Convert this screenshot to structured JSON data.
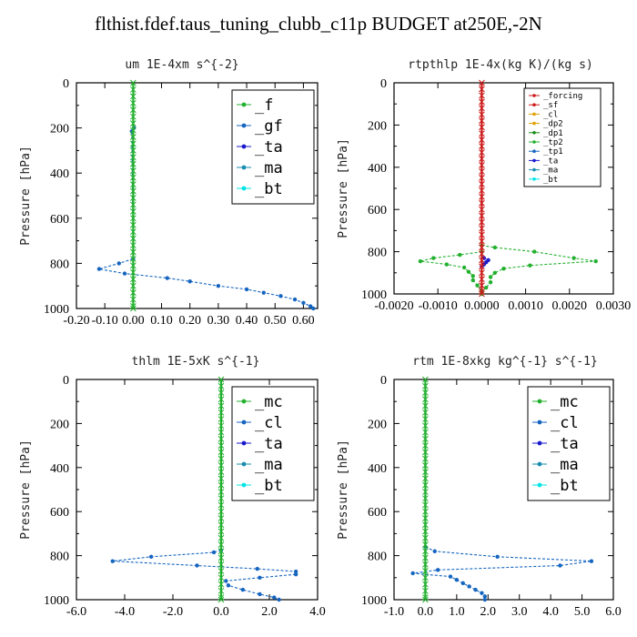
{
  "title": "flthist.fdef.taus_tuning_clubb_c11p  BUDGET at250E,-2N",
  "colors": {
    "green": "#22b02e",
    "blue": "#1565c0",
    "red": "#cc1a1a",
    "cyan": "#00e5e5"
  },
  "chart_data": [
    {
      "type": "line",
      "title": "um  1E-4xm s^{-2}",
      "ylabel": "Pressure [hPa]",
      "xlim": [
        -0.2,
        0.65
      ],
      "ylim": [
        1000,
        0
      ],
      "xticks": [
        -0.2,
        -0.1,
        0.0,
        0.1,
        0.2,
        0.3,
        0.4,
        0.5,
        0.6
      ],
      "xticklabels": [
        "-0.20",
        "-0.10",
        "0.00",
        "0.10",
        "0.20",
        "0.30",
        "0.40",
        "0.50",
        "0.60"
      ],
      "yticks": [
        0,
        200,
        400,
        600,
        800,
        1000
      ],
      "legend_position": "top-right",
      "legend_font": "large",
      "legend": [
        {
          "label": "_f",
          "color": "#22b02e"
        },
        {
          "label": "_gf",
          "color": "#1565c0"
        },
        {
          "label": "_ta",
          "color": "#1a1acc"
        },
        {
          "label": "_ma",
          "color": "#1a8cb0"
        },
        {
          "label": "_bt",
          "color": "#00e5e5"
        }
      ],
      "series": [
        {
          "name": "_gf",
          "color": "#1565c0",
          "y": [
            200,
            215,
            780,
            800,
            825,
            845,
            865,
            880,
            900,
            915,
            930,
            945,
            960,
            975,
            990,
            1000
          ],
          "values": [
            0.003,
            -0.005,
            0.0,
            -0.05,
            -0.12,
            -0.03,
            0.12,
            0.2,
            0.3,
            0.4,
            0.46,
            0.52,
            0.57,
            0.6,
            0.625,
            0.635
          ]
        },
        {
          "name": "_f",
          "color": "#22b02e",
          "y": [
            0,
            30,
            60,
            90,
            120,
            150,
            180,
            210,
            240,
            270,
            300,
            330,
            360,
            390,
            420,
            450,
            480,
            510,
            540,
            570,
            600,
            630,
            660,
            690,
            720,
            750,
            780,
            810,
            840,
            870,
            900,
            930,
            960,
            990,
            1000
          ],
          "values": [
            0,
            0,
            0,
            0,
            0,
            0,
            0,
            0,
            0,
            0,
            0,
            0,
            0,
            0,
            0,
            0,
            0,
            0,
            0,
            0,
            0,
            0,
            0,
            0,
            0,
            0,
            0,
            0,
            0,
            0,
            0,
            0,
            0,
            0,
            0
          ]
        }
      ]
    },
    {
      "type": "line",
      "title": "rtpthlp  1E-4x(kg K)/(kg s)",
      "ylabel": "Pressure [hPa]",
      "xlim": [
        -0.002,
        0.003
      ],
      "ylim": [
        1000,
        0
      ],
      "xticks": [
        -0.002,
        -0.001,
        0.0,
        0.001,
        0.002,
        0.003
      ],
      "xticklabels": [
        "-0.0020",
        "-0.0010",
        "0.0000",
        "0.0010",
        "0.0020",
        "0.0030"
      ],
      "yticks": [
        0,
        200,
        400,
        600,
        800,
        1000
      ],
      "legend_position": "top-right",
      "legend_font": "small",
      "legend": [
        {
          "label": "_forcing",
          "color": "#cc1a1a"
        },
        {
          "label": "_sf",
          "color": "#cc1a1a"
        },
        {
          "label": "_cl",
          "color": "#e0a000"
        },
        {
          "label": "_dp2",
          "color": "#e0a000"
        },
        {
          "label": "_dp1",
          "color": "#1a8c1a"
        },
        {
          "label": "_tp2",
          "color": "#22b02e"
        },
        {
          "label": "_tp1",
          "color": "#1565c0"
        },
        {
          "label": "_ta",
          "color": "#1a1acc"
        },
        {
          "label": "_ma",
          "color": "#1a8cb0"
        },
        {
          "label": "_bt",
          "color": "#00e5e5"
        }
      ],
      "series": [
        {
          "name": "_tp2",
          "color": "#22b02e",
          "y": [
            770,
            780,
            800,
            830,
            845,
            865,
            880,
            900,
            920,
            945,
            970,
            990,
            1000
          ],
          "values": [
            0.0,
            0.0003,
            0.0012,
            0.0021,
            0.0026,
            0.0011,
            0.0005,
            0.0003,
            0.0002,
            0.0002,
            0.0001,
            0.0,
            0.0
          ]
        },
        {
          "name": "_dp1",
          "color": "#22b02e",
          "y": [
            800,
            815,
            830,
            845,
            860,
            875,
            895,
            915,
            935,
            960,
            985,
            1000
          ],
          "values": [
            0.0,
            -0.0005,
            -0.0011,
            -0.0014,
            -0.0008,
            -0.0004,
            -0.0003,
            -0.0002,
            -0.0002,
            -0.0001,
            0.0,
            0.0
          ]
        },
        {
          "name": "_ta",
          "color": "#1a1acc",
          "y": [
            830,
            840,
            850,
            860,
            870
          ],
          "values": [
            5e-05,
            0.00015,
            0.0001,
            5e-05,
            0.0
          ]
        },
        {
          "name": "_forcing",
          "color": "#cc1a1a",
          "y": [
            0,
            30,
            60,
            90,
            120,
            150,
            180,
            210,
            240,
            270,
            300,
            330,
            360,
            390,
            420,
            450,
            480,
            510,
            540,
            570,
            600,
            630,
            660,
            690,
            720,
            750,
            780,
            810,
            840,
            870,
            900,
            930,
            960,
            990,
            1000
          ],
          "values": [
            0,
            0,
            0,
            0,
            0,
            0,
            0,
            0,
            0,
            0,
            0,
            0,
            0,
            0,
            0,
            0,
            0,
            0,
            0,
            0,
            0,
            0,
            0,
            0,
            0,
            0,
            0,
            0,
            0,
            0,
            0,
            0,
            0,
            0,
            0
          ]
        }
      ]
    },
    {
      "type": "line",
      "title": "thlm  1E-5xK s^{-1}",
      "ylabel": "Pressure [hPa]",
      "xlim": [
        -6.0,
        4.0
      ],
      "ylim": [
        1000,
        0
      ],
      "xticks": [
        -6,
        -4,
        -2,
        0,
        2,
        4
      ],
      "xticklabels": [
        "-6.0",
        "-4.0",
        "-2.0",
        "0.0",
        "2.0",
        "4.0"
      ],
      "yticks": [
        0,
        200,
        400,
        600,
        800,
        1000
      ],
      "legend_position": "top-right",
      "legend_font": "large",
      "legend": [
        {
          "label": "_mc",
          "color": "#22b02e"
        },
        {
          "label": "_cl",
          "color": "#1565c0"
        },
        {
          "label": "_ta",
          "color": "#1a1acc"
        },
        {
          "label": "_ma",
          "color": "#1a8cb0"
        },
        {
          "label": "_bt",
          "color": "#00e5e5"
        }
      ],
      "series": [
        {
          "name": "_cl",
          "color": "#1565c0",
          "y": [
            775,
            785,
            805,
            825,
            845,
            860,
            872,
            885,
            900,
            915,
            935,
            955,
            975,
            990,
            1000
          ],
          "values": [
            0.0,
            -0.3,
            -2.9,
            -4.5,
            -1.0,
            1.5,
            3.1,
            3.1,
            1.6,
            0.2,
            0.3,
            0.9,
            1.6,
            2.2,
            2.4
          ]
        },
        {
          "name": "_mc",
          "color": "#22b02e",
          "y": [
            0,
            30,
            60,
            90,
            120,
            150,
            180,
            210,
            240,
            270,
            300,
            330,
            360,
            390,
            420,
            450,
            480,
            510,
            540,
            570,
            600,
            630,
            660,
            690,
            720,
            750,
            780,
            810,
            840,
            870,
            900,
            930,
            960,
            990,
            1000
          ],
          "values": [
            0,
            0,
            0,
            0,
            0,
            0,
            0,
            0,
            0,
            0,
            0,
            0,
            0,
            0,
            0,
            0,
            0,
            0,
            0,
            0,
            0,
            0,
            0,
            0,
            0,
            0,
            0,
            0,
            0,
            0,
            0,
            0,
            0,
            0,
            0
          ]
        }
      ]
    },
    {
      "type": "line",
      "title": "rtm  1E-8xkg kg^{-1} s^{-1}",
      "ylabel": "Pressure [hPa]",
      "xlim": [
        -1.0,
        6.0
      ],
      "ylim": [
        1000,
        0
      ],
      "xticks": [
        -1,
        0,
        1,
        2,
        3,
        4,
        5,
        6
      ],
      "xticklabels": [
        "-1.0",
        "0.0",
        "1.0",
        "2.0",
        "3.0",
        "4.0",
        "5.0",
        "6.0"
      ],
      "yticks": [
        0,
        200,
        400,
        600,
        800,
        1000
      ],
      "legend_position": "top-right",
      "legend_font": "large",
      "legend": [
        {
          "label": "_mc",
          "color": "#22b02e"
        },
        {
          "label": "_cl",
          "color": "#1565c0"
        },
        {
          "label": "_ta",
          "color": "#1a1acc"
        },
        {
          "label": "_ma",
          "color": "#1a8cb0"
        },
        {
          "label": "_bt",
          "color": "#00e5e5"
        }
      ],
      "series": [
        {
          "name": "_cl",
          "color": "#1565c0",
          "y": [
            760,
            780,
            805,
            825,
            845,
            865,
            880,
            895,
            910,
            925,
            940,
            955,
            970,
            985,
            1000
          ],
          "values": [
            0.0,
            0.3,
            2.3,
            5.3,
            4.3,
            0.4,
            -0.4,
            0.8,
            1.0,
            1.2,
            1.4,
            1.6,
            1.8,
            1.9,
            1.9
          ]
        },
        {
          "name": "_mc",
          "color": "#22b02e",
          "y": [
            0,
            30,
            60,
            90,
            120,
            150,
            180,
            210,
            240,
            270,
            300,
            330,
            360,
            390,
            420,
            450,
            480,
            510,
            540,
            570,
            600,
            630,
            660,
            690,
            720,
            750,
            780,
            810,
            840,
            870,
            900,
            930,
            960,
            990,
            1000
          ],
          "values": [
            0,
            0,
            0,
            0,
            0,
            0,
            0,
            0,
            0,
            0,
            0,
            0,
            0,
            0,
            0,
            0,
            0,
            0,
            0,
            0,
            0,
            0,
            0,
            0,
            0,
            0,
            0,
            0,
            0,
            0,
            0,
            0,
            0,
            0,
            0
          ]
        }
      ]
    }
  ]
}
